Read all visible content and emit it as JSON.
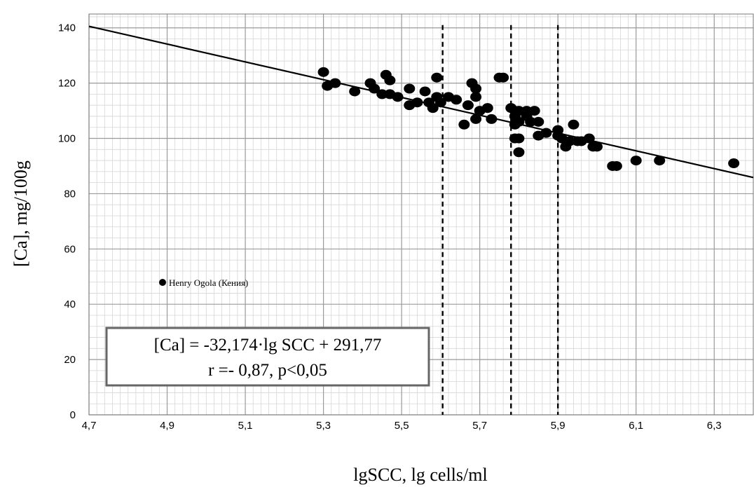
{
  "chart_data": {
    "type": "scatter",
    "xlabel": "lgSCC, lg cells/ml",
    "ylabel": "[Ca], mg/100g",
    "xlim": [
      4.7,
      6.4
    ],
    "ylim": [
      0,
      145
    ],
    "x_ticks": [
      "4,7",
      "4,9",
      "5,1",
      "5,3",
      "5,5",
      "5,7",
      "5,9",
      "6,1",
      "6,3"
    ],
    "x_tick_values": [
      4.7,
      4.9,
      5.1,
      5.3,
      5.5,
      5.7,
      5.9,
      6.1,
      6.3
    ],
    "y_ticks": [
      "0",
      "20",
      "40",
      "60",
      "80",
      "100",
      "120",
      "140"
    ],
    "y_tick_values": [
      0,
      20,
      40,
      60,
      80,
      100,
      120,
      140
    ],
    "grid": true,
    "legend_position": "middle-left",
    "series": [
      {
        "name": "Henry Ogola (Кения)",
        "color": "#000000",
        "points": [
          [
            5.3,
            124
          ],
          [
            5.31,
            119
          ],
          [
            5.33,
            120
          ],
          [
            5.38,
            117
          ],
          [
            5.42,
            120
          ],
          [
            5.43,
            118
          ],
          [
            5.45,
            116
          ],
          [
            5.46,
            123
          ],
          [
            5.47,
            121
          ],
          [
            5.47,
            116
          ],
          [
            5.49,
            115
          ],
          [
            5.52,
            118
          ],
          [
            5.52,
            112
          ],
          [
            5.54,
            113
          ],
          [
            5.56,
            117
          ],
          [
            5.57,
            113
          ],
          [
            5.58,
            111
          ],
          [
            5.59,
            115
          ],
          [
            5.59,
            122
          ],
          [
            5.6,
            113
          ],
          [
            5.62,
            115
          ],
          [
            5.64,
            114
          ],
          [
            5.66,
            105
          ],
          [
            5.67,
            112
          ],
          [
            5.68,
            120
          ],
          [
            5.69,
            118
          ],
          [
            5.69,
            115
          ],
          [
            5.69,
            107
          ],
          [
            5.7,
            110
          ],
          [
            5.72,
            111
          ],
          [
            5.73,
            107
          ],
          [
            5.75,
            122
          ],
          [
            5.76,
            122
          ],
          [
            5.78,
            111
          ],
          [
            5.79,
            110
          ],
          [
            5.79,
            108
          ],
          [
            5.79,
            105
          ],
          [
            5.79,
            100
          ],
          [
            5.8,
            110
          ],
          [
            5.8,
            106
          ],
          [
            5.8,
            100
          ],
          [
            5.8,
            95
          ],
          [
            5.82,
            110
          ],
          [
            5.82,
            108
          ],
          [
            5.83,
            106
          ],
          [
            5.84,
            110
          ],
          [
            5.85,
            106
          ],
          [
            5.85,
            101
          ],
          [
            5.87,
            102
          ],
          [
            5.9,
            103
          ],
          [
            5.9,
            101
          ],
          [
            5.91,
            100
          ],
          [
            5.92,
            97
          ],
          [
            5.93,
            99
          ],
          [
            5.94,
            105
          ],
          [
            5.95,
            99
          ],
          [
            5.96,
            99
          ],
          [
            5.98,
            100
          ],
          [
            5.99,
            97
          ],
          [
            6.0,
            97
          ],
          [
            6.04,
            90
          ],
          [
            6.05,
            90
          ],
          [
            6.1,
            92
          ],
          [
            6.16,
            92
          ],
          [
            6.35,
            91
          ]
        ]
      }
    ],
    "trendline": {
      "slope": -32.174,
      "intercept": 291.77,
      "x_range": [
        4.7,
        6.4
      ]
    },
    "vertical_lines": [
      5.605,
      5.78,
      5.9
    ],
    "annotation": {
      "line1": "[Ca] = -32,174·lg SCC + 291,77",
      "line2": "r =- 0,87, p<0,05"
    }
  }
}
